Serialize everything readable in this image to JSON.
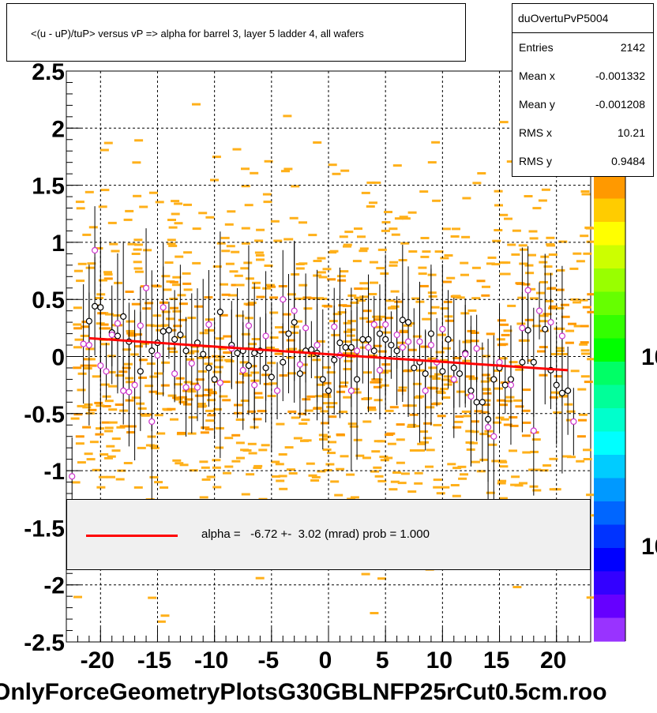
{
  "title": "<(u - uP)/tuP> versus   vP => alpha for barrel 3, layer 5 ladder 4, all wafers",
  "stats": {
    "name": "duOvertuPvP5004",
    "rows": [
      {
        "key": "Entries",
        "value": "2142"
      },
      {
        "key": "Mean x",
        "value": "-0.001332"
      },
      {
        "key": "Mean y",
        "value": "-0.001208"
      },
      {
        "key": "RMS x",
        "value": "10.21"
      },
      {
        "key": "RMS y",
        "value": "0.9484"
      }
    ]
  },
  "legend": {
    "text": "alpha =   -6.72 +-  3.02 (mrad) prob = 1.000",
    "line_color": "#ff0000"
  },
  "footer": "OnlyForceGeometryPlotsG30GBLNFP25rCut0.5cm.roo",
  "palette_labels": [
    "10",
    "10"
  ],
  "colors": {
    "fit": "#ff0000",
    "cells": "#ffa500",
    "marker_black": "#000000",
    "marker_magenta": "#cc33cc"
  },
  "chart_data": {
    "type": "scatter",
    "title": "<(u - uP)/tuP> versus   vP => alpha for barrel 3, layer 5 ladder 4, all wafers",
    "xlim": [
      -23,
      23
    ],
    "ylim": [
      -2.5,
      2.5
    ],
    "x_ticks": [
      -20,
      -15,
      -10,
      -5,
      0,
      5,
      10,
      15,
      20
    ],
    "x_tick_labels": [
      "-20",
      "-15",
      "-10",
      "-5",
      "0",
      "5",
      "10",
      "15",
      "20"
    ],
    "y_ticks": [
      -2.5,
      -2,
      -1.5,
      -1,
      -0.5,
      0,
      0.5,
      1,
      1.5,
      2,
      2.5
    ],
    "y_tick_labels": [
      "-2.5",
      "-2",
      "-1.5",
      "-1",
      "-0.5",
      "0",
      "0.5",
      "1",
      "1.5",
      "2",
      "2.5"
    ],
    "grid": true,
    "fit_line": {
      "x": [
        -21,
        21
      ],
      "y": [
        0.16,
        -0.12
      ]
    },
    "series": [
      {
        "marker": "black-circle",
        "points": [
          [
            -21,
            0.31
          ],
          [
            -20.5,
            0.44
          ],
          [
            -20,
            0.43
          ],
          [
            -19,
            0.21
          ],
          [
            -18.5,
            0.18
          ],
          [
            -18,
            0.35
          ],
          [
            -17.5,
            0.13
          ],
          [
            -16.5,
            -0.13
          ],
          [
            -15.5,
            0.05
          ],
          [
            -15,
            0.12
          ],
          [
            -14.5,
            0.22
          ],
          [
            -14,
            0.23
          ],
          [
            -13.5,
            0.15
          ],
          [
            -13,
            0.19
          ],
          [
            -12.5,
            0.05
          ],
          [
            -11.5,
            0.12
          ],
          [
            -11,
            0.02
          ],
          [
            -10.5,
            -0.1
          ],
          [
            -10,
            -0.2
          ],
          [
            -9.5,
            0.39
          ],
          [
            -8.5,
            0.1
          ],
          [
            -8,
            0.03
          ],
          [
            -7.5,
            0.05
          ],
          [
            -7,
            -0.08
          ],
          [
            -6.5,
            0.03
          ],
          [
            -6,
            0.05
          ],
          [
            -5.5,
            -0.1
          ],
          [
            -5,
            -0.18
          ],
          [
            -4,
            -0.05
          ],
          [
            -3.5,
            0.2
          ],
          [
            -3,
            0.3
          ],
          [
            -2.5,
            -0.15
          ],
          [
            -2,
            0.05
          ],
          [
            -1.5,
            0.06
          ],
          [
            -1,
            0.03
          ],
          [
            -0.5,
            -0.2
          ],
          [
            0,
            -0.3
          ],
          [
            0.5,
            -0.03
          ],
          [
            1,
            0.12
          ],
          [
            1.5,
            0.08
          ],
          [
            2,
            0.08
          ],
          [
            2.5,
            -0.2
          ],
          [
            3,
            0.15
          ],
          [
            3.5,
            0.15
          ],
          [
            4,
            0.05
          ],
          [
            4.5,
            0.2
          ],
          [
            5,
            0.15
          ],
          [
            5.5,
            0.1
          ],
          [
            6,
            0.05
          ],
          [
            6.5,
            0.32
          ],
          [
            7,
            0.3
          ],
          [
            7.5,
            -0.1
          ],
          [
            8,
            -0.05
          ],
          [
            8.5,
            -0.15
          ],
          [
            9,
            0.2
          ],
          [
            10,
            -0.13
          ],
          [
            10.5,
            0.15
          ],
          [
            11,
            -0.1
          ],
          [
            11.5,
            -0.15
          ],
          [
            12,
            0.03
          ],
          [
            12.5,
            -0.3
          ],
          [
            13,
            -0.4
          ],
          [
            13.5,
            -0.4
          ],
          [
            14,
            -0.55
          ],
          [
            14.5,
            -0.2
          ],
          [
            15,
            -0.1
          ],
          [
            15.5,
            -0.25
          ],
          [
            16,
            -0.2
          ],
          [
            17,
            -0.05
          ],
          [
            17.5,
            0.23
          ],
          [
            18,
            -0.05
          ],
          [
            19,
            0.24
          ],
          [
            19.5,
            -0.12
          ],
          [
            20,
            -0.25
          ],
          [
            20.5,
            -0.32
          ],
          [
            21,
            -0.3
          ]
        ]
      },
      {
        "marker": "magenta-circle",
        "points": [
          [
            -22.5,
            -1.05
          ],
          [
            -21.5,
            0.11
          ],
          [
            -21,
            0.1
          ],
          [
            -20.5,
            0.93
          ],
          [
            -20,
            -0.08
          ],
          [
            -19.5,
            -0.13
          ],
          [
            -19,
            0.19
          ],
          [
            -18.5,
            0.29
          ],
          [
            -18,
            -0.3
          ],
          [
            -17.5,
            -0.31
          ],
          [
            -17,
            -0.25
          ],
          [
            -16.5,
            0.27
          ],
          [
            -16,
            0.6
          ],
          [
            -15.5,
            -0.57
          ],
          [
            -15,
            0.01
          ],
          [
            -14.5,
            0.43
          ],
          [
            -13.5,
            -0.15
          ],
          [
            -12.5,
            -0.27
          ],
          [
            -12,
            -0.06
          ],
          [
            -11.5,
            -0.27
          ],
          [
            -10.5,
            0.28
          ],
          [
            -9.5,
            -0.23
          ],
          [
            -8.5,
            0.07
          ],
          [
            -7.5,
            -0.12
          ],
          [
            -7,
            0.27
          ],
          [
            -6.5,
            -0.25
          ],
          [
            -5.5,
            0.18
          ],
          [
            -4.5,
            -0.3
          ],
          [
            -4,
            0.5
          ],
          [
            -3,
            0.4
          ],
          [
            -2.5,
            -0.07
          ],
          [
            -2,
            0.25
          ],
          [
            -1,
            0.1
          ],
          [
            0.5,
            0.26
          ],
          [
            1,
            0.01
          ],
          [
            2,
            -0.3
          ],
          [
            2.5,
            0.05
          ],
          [
            3.5,
            0.08
          ],
          [
            4,
            0.28
          ],
          [
            4.5,
            -0.12
          ],
          [
            5,
            0.28
          ],
          [
            6,
            0.19
          ],
          [
            6.5,
            0.08
          ],
          [
            7,
            0.13
          ],
          [
            8,
            0.13
          ],
          [
            8.5,
            -0.3
          ],
          [
            9,
            0.1
          ],
          [
            9.5,
            -0.05
          ],
          [
            10,
            0.24
          ],
          [
            11,
            -0.2
          ],
          [
            12,
            0.02
          ],
          [
            12.5,
            -0.35
          ],
          [
            13,
            0.07
          ],
          [
            14,
            -0.62
          ],
          [
            14.5,
            -0.7
          ],
          [
            15,
            -0.05
          ],
          [
            16,
            -0.25
          ],
          [
            17,
            0.25
          ],
          [
            17.5,
            0.58
          ],
          [
            18,
            -0.65
          ],
          [
            18.5,
            0.4
          ],
          [
            19.5,
            0.3
          ],
          [
            20.5,
            0.18
          ],
          [
            21.5,
            -0.57
          ]
        ]
      }
    ]
  }
}
